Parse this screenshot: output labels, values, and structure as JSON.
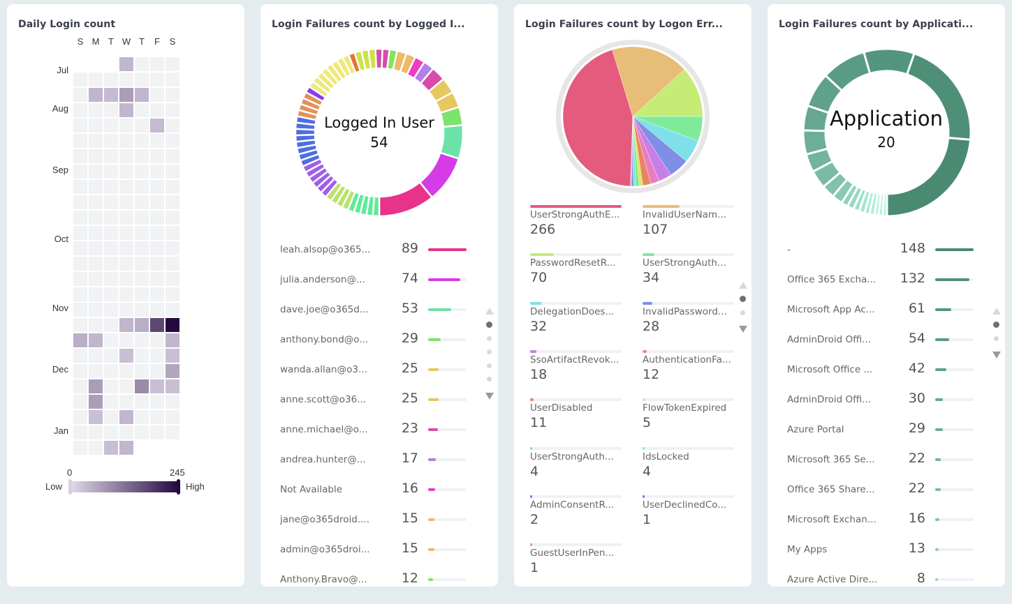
{
  "panels": {
    "heatmap": {
      "title": "Daily Login count",
      "days": [
        "S",
        "M",
        "T",
        "W",
        "T",
        "F",
        "S"
      ],
      "months": [
        {
          "label": "Jul",
          "row": 0.5
        },
        {
          "label": "Aug",
          "row": 3
        },
        {
          "label": "Sep",
          "row": 7
        },
        {
          "label": "Oct",
          "row": 11.5
        },
        {
          "label": "Nov",
          "row": 16
        },
        {
          "label": "Dec",
          "row": 20
        },
        {
          "label": "Jan",
          "row": 24
        }
      ],
      "legend": {
        "min": "0",
        "max": "245",
        "low_label": "Low",
        "high_label": "High",
        "low_color": "#e0d8e8",
        "high_color": "#24093f",
        "empty_color": "#f1f2f4"
      },
      "weeks": [
        [
          null,
          null,
          null,
          40,
          0,
          0,
          0
        ],
        [
          0,
          0,
          0,
          0,
          0,
          0,
          0
        ],
        [
          0,
          40,
          35,
          70,
          40,
          0,
          0
        ],
        [
          0,
          0,
          0,
          40,
          0,
          0,
          0
        ],
        [
          0,
          0,
          0,
          0,
          0,
          35,
          0
        ],
        [
          0,
          0,
          0,
          0,
          0,
          0,
          0
        ],
        [
          0,
          0,
          0,
          0,
          0,
          0,
          0
        ],
        [
          0,
          0,
          0,
          0,
          0,
          0,
          0
        ],
        [
          0,
          0,
          0,
          0,
          0,
          0,
          0
        ],
        [
          0,
          0,
          0,
          0,
          0,
          0,
          0
        ],
        [
          0,
          0,
          0,
          0,
          0,
          0,
          0
        ],
        [
          0,
          0,
          0,
          0,
          0,
          0,
          0
        ],
        [
          0,
          0,
          0,
          0,
          0,
          0,
          0
        ],
        [
          0,
          0,
          0,
          0,
          0,
          0,
          0
        ],
        [
          0,
          0,
          0,
          0,
          0,
          0,
          0
        ],
        [
          0,
          0,
          0,
          0,
          0,
          0,
          0
        ],
        [
          0,
          0,
          0,
          0,
          0,
          0,
          0
        ],
        [
          0,
          0,
          0,
          40,
          50,
          170,
          245
        ],
        [
          50,
          40,
          0,
          0,
          0,
          0,
          40
        ],
        [
          0,
          0,
          0,
          30,
          0,
          0,
          30
        ],
        [
          0,
          0,
          0,
          0,
          0,
          0,
          60
        ],
        [
          0,
          70,
          0,
          0,
          90,
          30,
          30
        ],
        [
          0,
          70,
          0,
          0,
          0,
          0,
          0
        ],
        [
          0,
          30,
          0,
          40,
          0,
          0,
          0
        ],
        [
          0,
          0,
          0,
          0,
          0,
          0,
          0
        ],
        [
          0,
          0,
          30,
          40,
          null,
          null,
          null
        ]
      ]
    },
    "logged_in_user": {
      "title": "Login Failures count by Logged I...",
      "center_label": "Logged In User",
      "center_value": "54",
      "items": [
        {
          "name": "leah.alsop@o365...",
          "value": 89,
          "color": "#e8338a"
        },
        {
          "name": "julia.anderson@...",
          "value": 74,
          "color": "#d63be8"
        },
        {
          "name": "dave.joe@o365d...",
          "value": 53,
          "color": "#6be3a8"
        },
        {
          "name": "anthony.bond@o...",
          "value": 29,
          "color": "#7ce36b"
        },
        {
          "name": "wanda.allan@o3...",
          "value": 25,
          "color": "#e6c760"
        },
        {
          "name": "anne.scott@o36...",
          "value": 25,
          "color": "#e6c760"
        },
        {
          "name": "anne.michael@o...",
          "value": 23,
          "color": "#d94ba8"
        },
        {
          "name": "andrea.hunter@...",
          "value": 17,
          "color": "#b57fe6"
        },
        {
          "name": "Not Available",
          "value": 16,
          "color": "#ee3cc4"
        },
        {
          "name": "jane@o365droid....",
          "value": 15,
          "color": "#f0b868"
        },
        {
          "name": "admin@o365droi...",
          "value": 15,
          "color": "#f0b868"
        },
        {
          "name": "Anthony.Bravo@...",
          "value": 12,
          "color": "#7be85a"
        }
      ],
      "other_segments": [
        {
          "value": 11,
          "color": "#d94ba8"
        },
        {
          "value": 11,
          "color": "#d94ba8"
        },
        {
          "value": 11,
          "color": "#cde24a"
        },
        {
          "value": 11,
          "color": "#cde24a"
        },
        {
          "value": 11,
          "color": "#cde24a"
        },
        {
          "value": 10,
          "color": "#e8733a"
        },
        {
          "value": 10,
          "color": "#ede97a"
        },
        {
          "value": 10,
          "color": "#ede97a"
        },
        {
          "value": 10,
          "color": "#ede97a"
        },
        {
          "value": 10,
          "color": "#ede97a"
        },
        {
          "value": 10,
          "color": "#ede97a"
        },
        {
          "value": 10,
          "color": "#ede97a"
        },
        {
          "value": 10,
          "color": "#ede97a"
        },
        {
          "value": 10,
          "color": "#ede97a"
        },
        {
          "value": 10,
          "color": "#8a3be8"
        },
        {
          "value": 10,
          "color": "#e39158"
        },
        {
          "value": 10,
          "color": "#e39158"
        },
        {
          "value": 10,
          "color": "#e39158"
        },
        {
          "value": 10,
          "color": "#e39158"
        },
        {
          "value": 10,
          "color": "#4e6fe0"
        },
        {
          "value": 10,
          "color": "#4e6fe0"
        },
        {
          "value": 10,
          "color": "#4e6fe0"
        },
        {
          "value": 10,
          "color": "#4e6fe0"
        },
        {
          "value": 10,
          "color": "#4e6fe0"
        },
        {
          "value": 10,
          "color": "#4e6fe0"
        },
        {
          "value": 10,
          "color": "#4e6fe0"
        },
        {
          "value": 10,
          "color": "#4e6fe0"
        },
        {
          "value": 10,
          "color": "#9f5fe6"
        },
        {
          "value": 10,
          "color": "#9f5fe6"
        },
        {
          "value": 10,
          "color": "#9f5fe6"
        },
        {
          "value": 10,
          "color": "#9f5fe6"
        },
        {
          "value": 10,
          "color": "#9f5fe6"
        },
        {
          "value": 10,
          "color": "#9f5fe6"
        },
        {
          "value": 10,
          "color": "#b9e36b"
        },
        {
          "value": 10,
          "color": "#b9e36b"
        },
        {
          "value": 10,
          "color": "#b9e36b"
        },
        {
          "value": 10,
          "color": "#b9e36b"
        },
        {
          "value": 10,
          "color": "#5eeb9a"
        },
        {
          "value": 10,
          "color": "#5eeb9a"
        },
        {
          "value": 10,
          "color": "#5eeb9a"
        },
        {
          "value": 10,
          "color": "#5eeb9a"
        },
        {
          "value": 10,
          "color": "#5eeb9a"
        }
      ],
      "pages": 5,
      "active_page": 0
    },
    "logon_error": {
      "title": "Login Failures count by Logon Err...",
      "items": [
        {
          "name": "UserStrongAuthE...",
          "value": 266,
          "color": "#e45b7d"
        },
        {
          "name": "InvalidUserNam...",
          "value": 107,
          "color": "#e8bd78"
        },
        {
          "name": "PasswordResetR...",
          "value": 70,
          "color": "#c5ec74"
        },
        {
          "name": "UserStrongAuth...",
          "value": 34,
          "color": "#7eeb9a"
        },
        {
          "name": "DelegationDoes...",
          "value": 32,
          "color": "#7fe0ea"
        },
        {
          "name": "InvalidPassword...",
          "value": 28,
          "color": "#7f8fe6"
        },
        {
          "name": "SsoArtifactRevok...",
          "value": 18,
          "color": "#c77ee8"
        },
        {
          "name": "AuthenticationFa...",
          "value": 12,
          "color": "#e87ec0"
        },
        {
          "name": "UserDisabled",
          "value": 11,
          "color": "#e8855e"
        },
        {
          "name": "FlowTokenExpired",
          "value": 5,
          "color": "#d7e86a"
        },
        {
          "name": "UserStrongAuth...",
          "value": 4,
          "color": "#7ee87e"
        },
        {
          "name": "IdsLocked",
          "value": 4,
          "color": "#7ee8d8"
        },
        {
          "name": "AdminConsentR...",
          "value": 2,
          "color": "#6b7ee8"
        },
        {
          "name": "UserDeclinedCo...",
          "value": 1,
          "color": "#9b6be8"
        },
        {
          "name": "GuestUserInPen...",
          "value": 1,
          "color": "#e87ed7"
        }
      ],
      "pages": 2,
      "active_page": 0
    },
    "application": {
      "title": "Login Failures count by Applicati...",
      "center_label": "Application",
      "center_value": "20",
      "items": [
        {
          "name": "-",
          "value": 148,
          "color": "#4a8a72"
        },
        {
          "name": "Office 365 Excha...",
          "value": 132,
          "color": "#4f8f77"
        },
        {
          "name": "Microsoft App Ac...",
          "value": 61,
          "color": "#54957d"
        },
        {
          "name": "AdminDroid Offi...",
          "value": 54,
          "color": "#5a9b83"
        },
        {
          "name": "Microsoft Office ...",
          "value": 42,
          "color": "#60a189"
        },
        {
          "name": "AdminDroid Offi...",
          "value": 30,
          "color": "#66a78f"
        },
        {
          "name": "Azure Portal",
          "value": 29,
          "color": "#6cae96"
        },
        {
          "name": "Microsoft 365 Se...",
          "value": 22,
          "color": "#72b49c"
        },
        {
          "name": "Office 365 Share...",
          "value": 22,
          "color": "#79bba3"
        },
        {
          "name": "Microsoft Exchan...",
          "value": 16,
          "color": "#80c2aa"
        },
        {
          "name": "My Apps",
          "value": 13,
          "color": "#88cab2"
        },
        {
          "name": "Azure Active Dire...",
          "value": 8,
          "color": "#90d2ba"
        }
      ],
      "other_segments": [
        {
          "value": 8,
          "color": "#98d9c2"
        },
        {
          "value": 7,
          "color": "#9fe0c9"
        },
        {
          "value": 7,
          "color": "#a5e5ce"
        },
        {
          "value": 6,
          "color": "#aae9d3"
        },
        {
          "value": 6,
          "color": "#afedd8"
        },
        {
          "value": 5,
          "color": "#b3f0dc"
        },
        {
          "value": 5,
          "color": "#b6f2df"
        },
        {
          "value": 5,
          "color": "#b9f4e2"
        }
      ],
      "pages": 2,
      "active_page": 0
    }
  }
}
